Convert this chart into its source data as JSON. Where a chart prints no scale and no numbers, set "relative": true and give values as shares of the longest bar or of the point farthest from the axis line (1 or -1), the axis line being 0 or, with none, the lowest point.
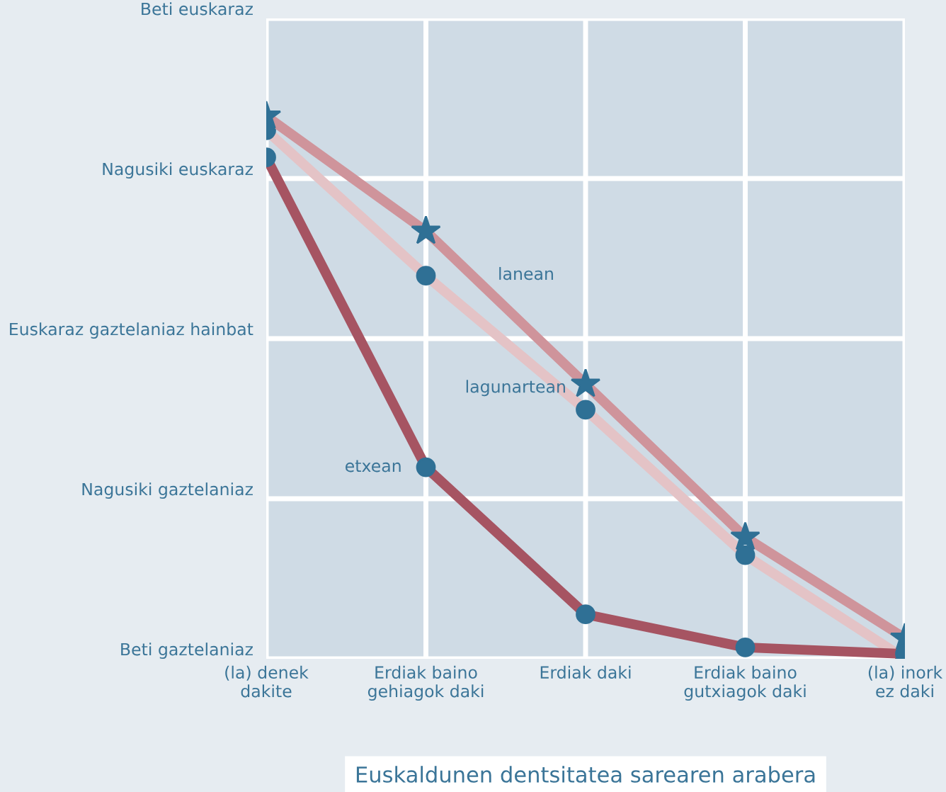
{
  "chart_data": {
    "type": "line",
    "relative": true,
    "xlabel": "Euskaldunen dentsitatea sarearen arabera",
    "categories": [
      "(la) denek\ndakite",
      "Erdiak baino\ngehiagok daki",
      "Erdiak daki",
      "Erdiak baino\ngutxiagok daki",
      "(la) inork\nez daki"
    ],
    "annotations": [
      "Beti gaztelaniaz",
      "Nagusiki gaztelaniaz",
      "Euskaraz gaztelaniaz hainbat",
      "Nagusiki euskaraz",
      "Beti euskaraz"
    ],
    "grid": true,
    "series": [
      {
        "name": "lagunartean",
        "color": "#e4c3c6",
        "marker": "circle",
        "values": [
          0.974,
          0.706,
          0.459,
          0.191,
          0
        ]
      },
      {
        "name": "lanean",
        "color": "#cf949b",
        "marker": "star",
        "values": [
          1,
          0.788,
          0.506,
          0.224,
          0.038
        ]
      },
      {
        "name": "etxean",
        "color": "#a65462",
        "marker": "circle",
        "values": [
          0.924,
          0.353,
          0.082,
          0.021,
          0.009
        ]
      }
    ]
  }
}
